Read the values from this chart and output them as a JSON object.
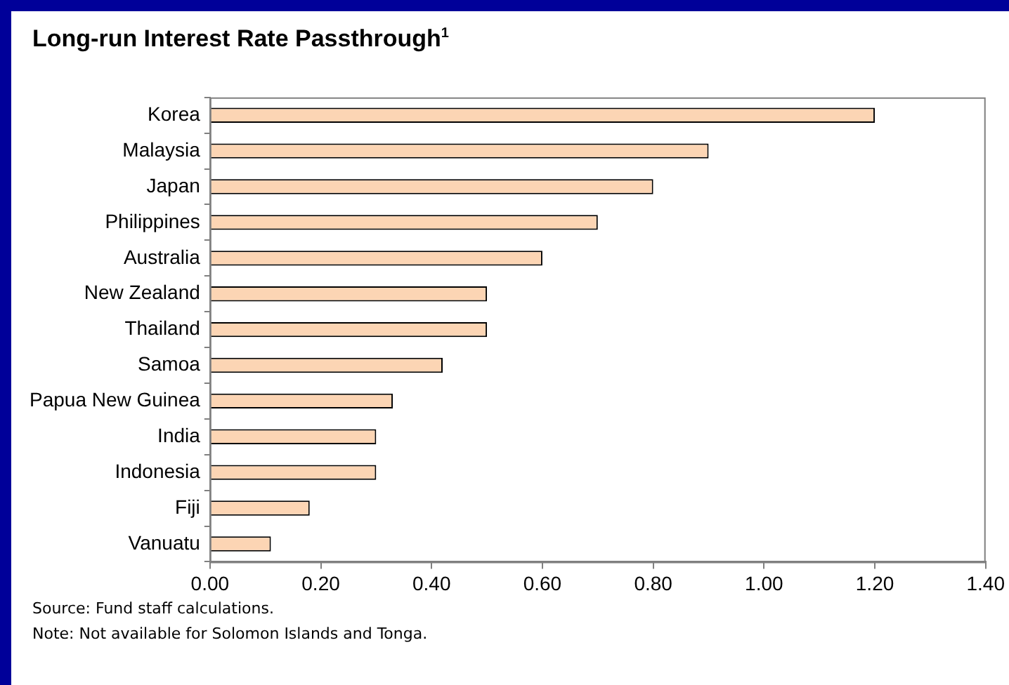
{
  "chart_data": {
    "type": "bar",
    "orientation": "horizontal",
    "title": "Long-run Interest Rate Passthrough$^{1}$",
    "categories": [
      "Korea",
      "Malaysia",
      "Japan",
      "Philippines",
      "Australia",
      "New Zealand",
      "Thailand",
      "Samoa",
      "Papua New Guinea",
      "India",
      "Indonesia",
      "Fiji",
      "Vanuatu"
    ],
    "values": [
      1.2,
      0.9,
      0.8,
      0.7,
      0.6,
      0.5,
      0.5,
      0.42,
      0.33,
      0.3,
      0.3,
      0.18,
      0.11
    ],
    "color": "#fcd5b4",
    "xlim": [
      0,
      1.4
    ],
    "xticks": [
      {
        "value": 0,
        "label": "0.00"
      },
      {
        "value": 0.2,
        "label": "0.20"
      },
      {
        "value": 0.4,
        "label": "0.40"
      },
      {
        "value": 0.6,
        "label": "0.60"
      },
      {
        "value": 0.8,
        "label": "0.80"
      },
      {
        "value": 1,
        "label": "1.00"
      },
      {
        "value": 1.2,
        "label": "1.20"
      },
      {
        "value": 1.4,
        "label": "1.40"
      }
    ],
    "grid": false,
    "legend": false,
    "annotations": [
      "Source: Fund staff calculations.",
      "Note: Not available for Solomon Islands and Tonga."
    ]
  }
}
